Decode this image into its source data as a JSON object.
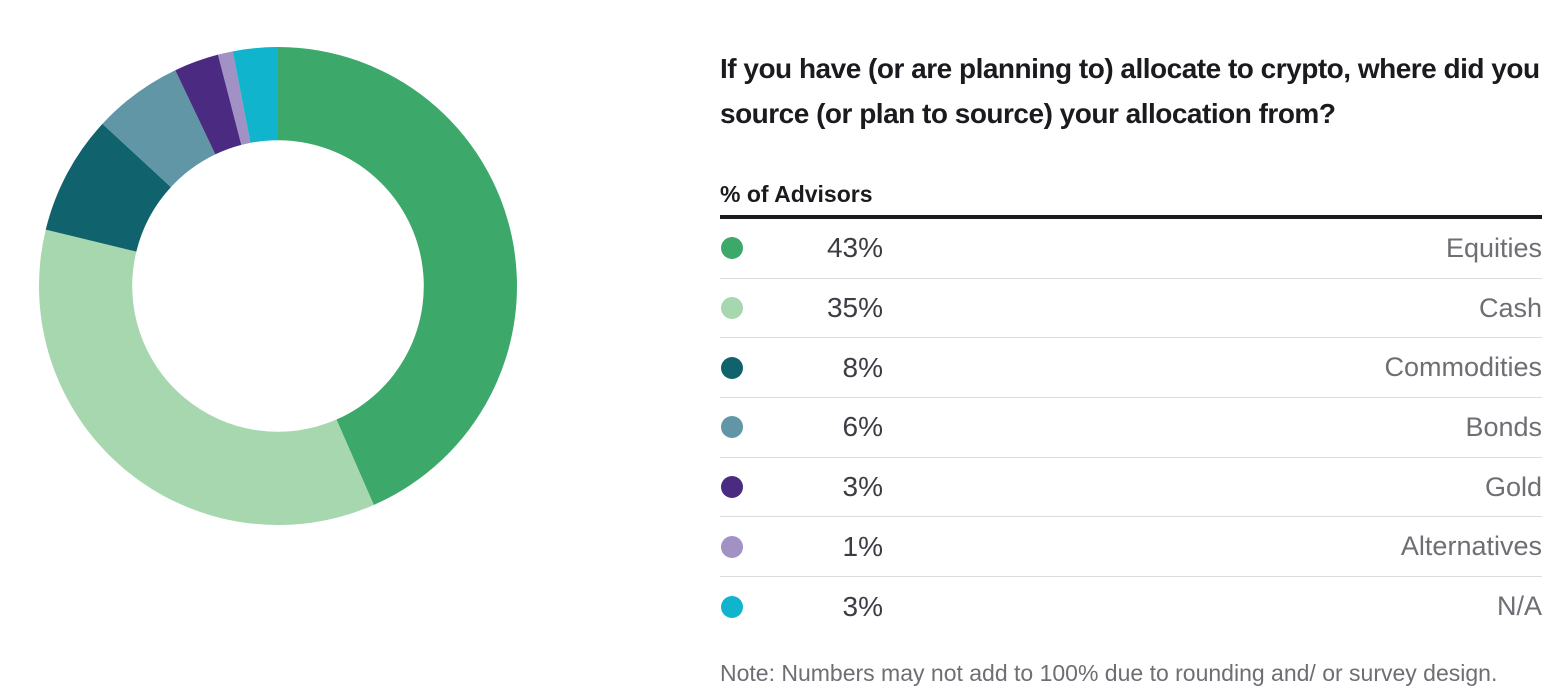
{
  "title": "If you have (or are planning to) allocate to crypto, where did you source (or plan to source) your allocation from?",
  "table_header": "% of Advisors",
  "note": "Note: Numbers may not add to 100% due to rounding and/ or survey design.",
  "chart_data": {
    "type": "pie",
    "subtype": "donut",
    "title": "If you have (or are planning to) allocate to crypto, where did you source (or plan to source) your allocation from?",
    "unit": "% of Advisors",
    "categories": [
      "Equities",
      "Cash",
      "Commodities",
      "Bonds",
      "Gold",
      "Alternatives",
      "N/A"
    ],
    "values": [
      43,
      35,
      8,
      6,
      3,
      1,
      3
    ],
    "colors": [
      "#3CA96A",
      "#A6D7AF",
      "#10626D",
      "#6096A5",
      "#4A2B81",
      "#A191C5",
      "#10B4CD"
    ],
    "start_angle_deg": 0,
    "direction": "clockwise",
    "inner_radius_ratio": 0.61,
    "legend_position": "right",
    "annotation": "Note: Numbers may not add to 100% due to rounding and/ or survey design."
  },
  "palette": {
    "heading_text": "#1b1b1f",
    "value_text": "#3c3c45",
    "label_text": "#6e6e74",
    "rule": "#1b1b1f",
    "separator": "#dcdcdc",
    "background": "#ffffff"
  }
}
